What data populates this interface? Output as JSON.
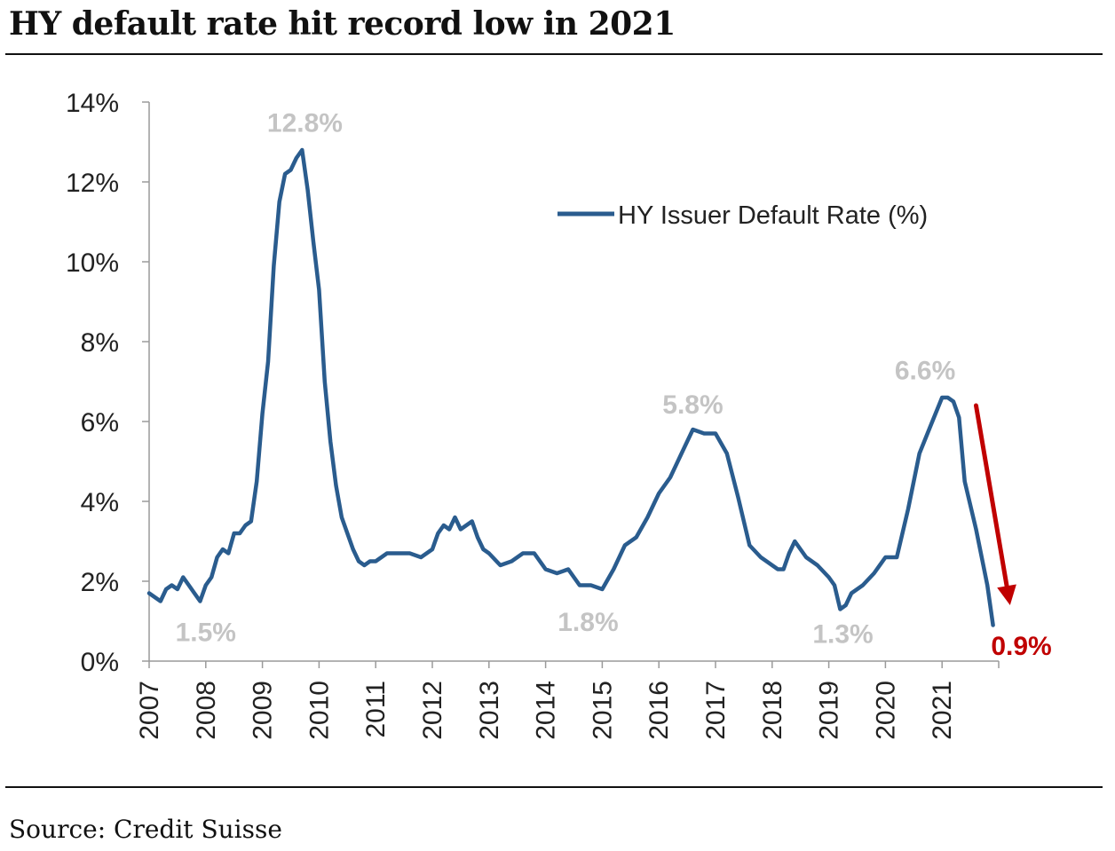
{
  "title": "HY default rate hit record low in 2021",
  "source": "Source: Credit Suisse",
  "chart_data": {
    "type": "line",
    "title": "HY default rate hit record low in 2021",
    "xlabel": "",
    "ylabel": "",
    "ylim": [
      0,
      14
    ],
    "xlim": [
      2007,
      2022
    ],
    "y_ticks": [
      "0%",
      "2%",
      "4%",
      "6%",
      "8%",
      "10%",
      "12%",
      "14%"
    ],
    "y_tick_values": [
      0,
      2,
      4,
      6,
      8,
      10,
      12,
      14
    ],
    "x_ticks": [
      "2007",
      "2008",
      "2009",
      "2010",
      "2011",
      "2012",
      "2013",
      "2014",
      "2015",
      "2016",
      "2017",
      "2018",
      "2019",
      "2020",
      "2021"
    ],
    "x_tick_values": [
      2007,
      2008,
      2009,
      2010,
      2011,
      2012,
      2013,
      2014,
      2015,
      2016,
      2017,
      2018,
      2019,
      2020,
      2021
    ],
    "grid": false,
    "legend_placement": "top-right",
    "series": [
      {
        "name": "HY Issuer Default Rate (%)",
        "color": "#2a5c8e",
        "x": [
          2007.0,
          2007.1,
          2007.2,
          2007.3,
          2007.4,
          2007.5,
          2007.6,
          2007.7,
          2007.8,
          2007.9,
          2008.0,
          2008.1,
          2008.2,
          2008.3,
          2008.4,
          2008.5,
          2008.6,
          2008.7,
          2008.8,
          2008.9,
          2009.0,
          2009.1,
          2009.2,
          2009.3,
          2009.4,
          2009.5,
          2009.6,
          2009.7,
          2009.8,
          2009.9,
          2010.0,
          2010.1,
          2010.2,
          2010.3,
          2010.4,
          2010.5,
          2010.6,
          2010.7,
          2010.8,
          2010.9,
          2011.0,
          2011.2,
          2011.4,
          2011.6,
          2011.8,
          2012.0,
          2012.1,
          2012.2,
          2012.3,
          2012.4,
          2012.5,
          2012.6,
          2012.7,
          2012.8,
          2012.9,
          2013.0,
          2013.2,
          2013.4,
          2013.6,
          2013.8,
          2014.0,
          2014.2,
          2014.4,
          2014.6,
          2014.8,
          2015.0,
          2015.2,
          2015.4,
          2015.6,
          2015.8,
          2016.0,
          2016.2,
          2016.4,
          2016.6,
          2016.8,
          2017.0,
          2017.2,
          2017.4,
          2017.6,
          2017.8,
          2018.0,
          2018.1,
          2018.2,
          2018.3,
          2018.4,
          2018.6,
          2018.8,
          2019.0,
          2019.1,
          2019.2,
          2019.3,
          2019.4,
          2019.6,
          2019.8,
          2020.0,
          2020.2,
          2020.4,
          2020.6,
          2020.8,
          2021.0,
          2021.1,
          2021.2,
          2021.3,
          2021.4,
          2021.6,
          2021.8,
          2021.9
        ],
        "y": [
          1.7,
          1.6,
          1.5,
          1.8,
          1.9,
          1.8,
          2.1,
          1.9,
          1.7,
          1.5,
          1.9,
          2.1,
          2.6,
          2.8,
          2.7,
          3.2,
          3.2,
          3.4,
          3.5,
          4.5,
          6.2,
          7.5,
          9.9,
          11.5,
          12.2,
          12.3,
          12.6,
          12.8,
          11.8,
          10.5,
          9.3,
          7.0,
          5.5,
          4.4,
          3.6,
          3.2,
          2.8,
          2.5,
          2.4,
          2.5,
          2.5,
          2.7,
          2.7,
          2.7,
          2.6,
          2.8,
          3.2,
          3.4,
          3.3,
          3.6,
          3.3,
          3.4,
          3.5,
          3.1,
          2.8,
          2.7,
          2.4,
          2.5,
          2.7,
          2.7,
          2.3,
          2.2,
          2.3,
          1.9,
          1.9,
          1.8,
          2.3,
          2.9,
          3.1,
          3.6,
          4.2,
          4.6,
          5.2,
          5.8,
          5.7,
          5.7,
          5.2,
          4.1,
          2.9,
          2.6,
          2.4,
          2.3,
          2.3,
          2.7,
          3.0,
          2.6,
          2.4,
          2.1,
          1.9,
          1.3,
          1.4,
          1.7,
          1.9,
          2.2,
          2.6,
          2.6,
          3.8,
          5.2,
          5.9,
          6.6,
          6.6,
          6.5,
          6.1,
          4.5,
          3.3,
          1.9,
          0.9
        ]
      }
    ],
    "annotations": [
      {
        "text": "12.8%",
        "x": 2009.75,
        "y": 13.5,
        "color": "#c4c4c4"
      },
      {
        "text": "1.5%",
        "x": 2008.0,
        "y": 0.75,
        "color": "#c4c4c4"
      },
      {
        "text": "1.8%",
        "x": 2014.75,
        "y": 1.0,
        "color": "#c4c4c4"
      },
      {
        "text": "5.8%",
        "x": 2016.6,
        "y": 6.45,
        "color": "#c4c4c4"
      },
      {
        "text": "1.3%",
        "x": 2019.25,
        "y": 0.7,
        "color": "#c4c4c4"
      },
      {
        "text": "6.6%",
        "x": 2020.7,
        "y": 7.3,
        "color": "#c4c4c4"
      },
      {
        "text": "0.9%",
        "x": 2022.4,
        "y": 0.4,
        "color": "#c00000"
      }
    ],
    "arrow": {
      "color": "#c00000",
      "from": [
        2021.6,
        6.4
      ],
      "to": [
        2022.2,
        1.4
      ]
    }
  }
}
